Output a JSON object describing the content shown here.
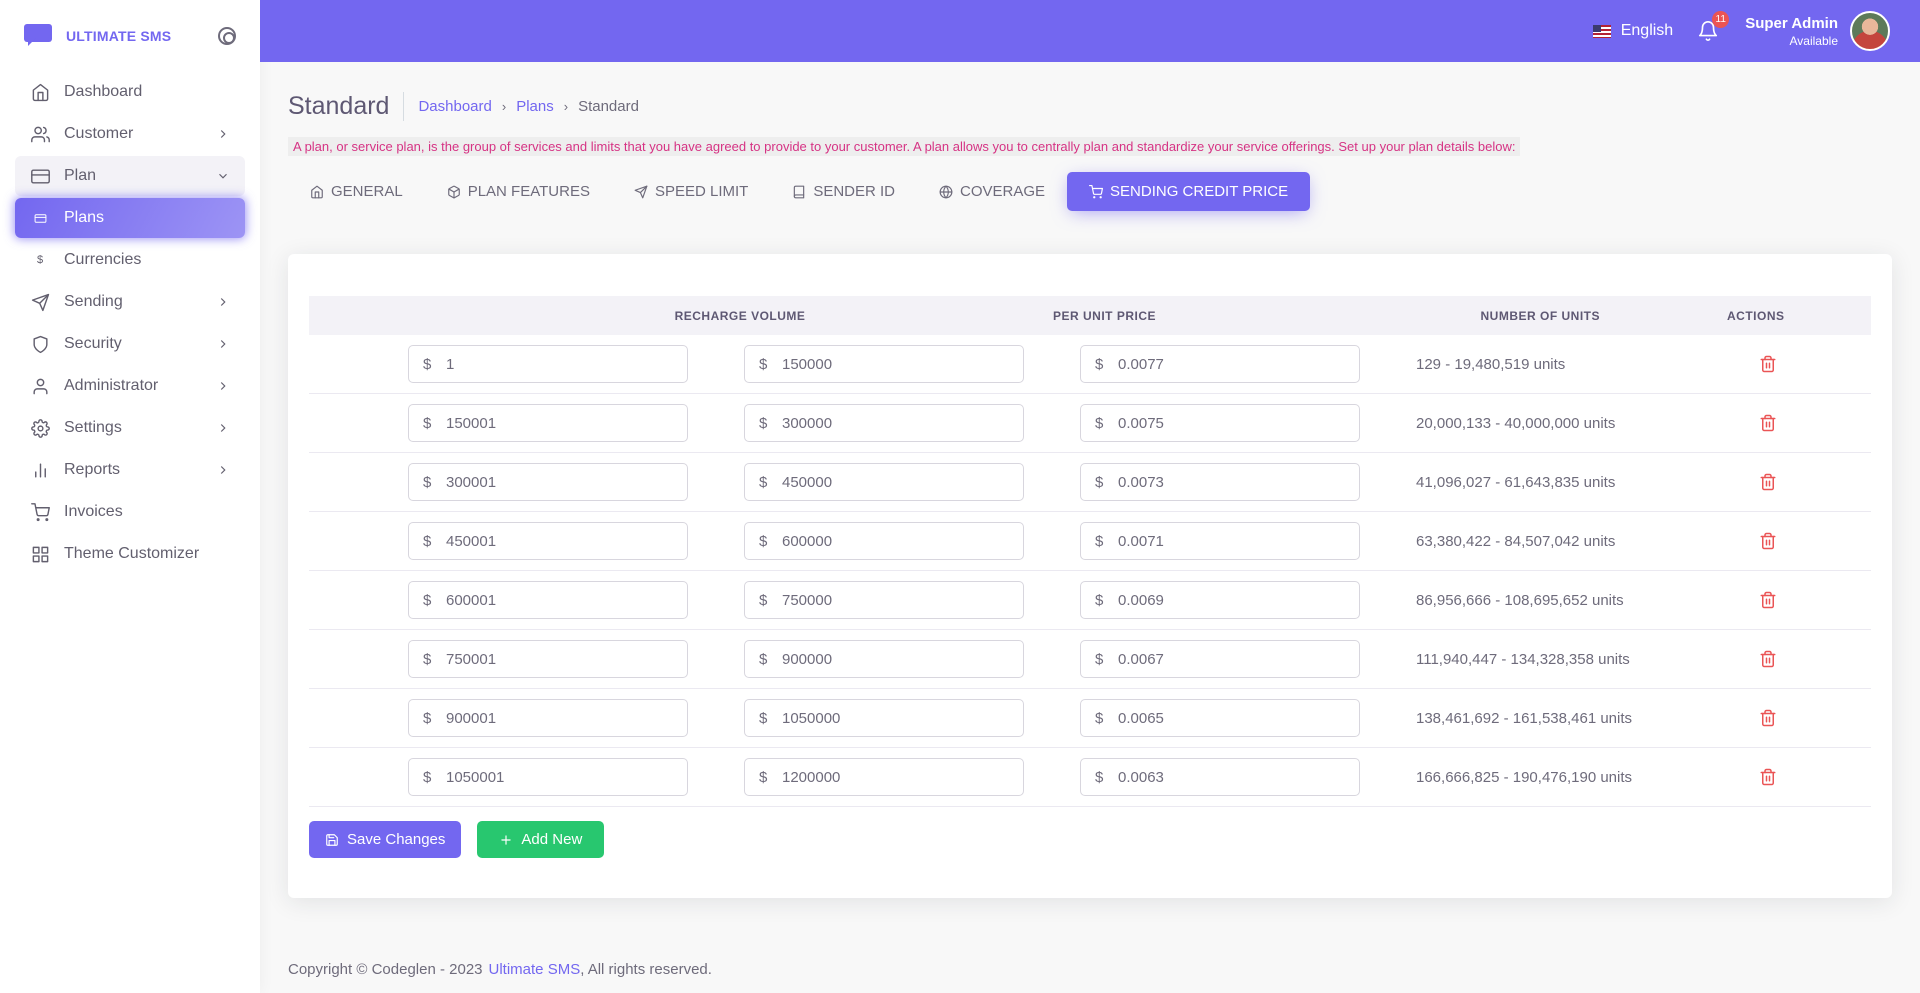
{
  "brand": {
    "name": "ULTIMATE SMS"
  },
  "sidebar": {
    "items": [
      {
        "label": "Dashboard",
        "icon": "home-icon",
        "has_children": false
      },
      {
        "label": "Customer",
        "icon": "users-icon",
        "has_children": true
      },
      {
        "label": "Plan",
        "icon": "credit-card-icon",
        "has_children": true,
        "open": true
      },
      {
        "label": "Plans",
        "icon": "card-mini-icon",
        "sub": true,
        "active": true
      },
      {
        "label": "Currencies",
        "icon": "dollar-icon",
        "sub": true
      },
      {
        "label": "Sending",
        "icon": "send-icon",
        "has_children": true
      },
      {
        "label": "Security",
        "icon": "shield-icon",
        "has_children": true
      },
      {
        "label": "Administrator",
        "icon": "user-icon",
        "has_children": true
      },
      {
        "label": "Settings",
        "icon": "gear-icon",
        "has_children": true
      },
      {
        "label": "Reports",
        "icon": "bar-chart-icon",
        "has_children": true
      },
      {
        "label": "Invoices",
        "icon": "cart-icon",
        "has_children": false
      },
      {
        "label": "Theme Customizer",
        "icon": "grid-icon",
        "has_children": false
      }
    ]
  },
  "header": {
    "language": "English",
    "notification_count": "11",
    "user_name": "Super Admin",
    "user_status": "Available"
  },
  "page": {
    "title": "Standard",
    "breadcrumb": {
      "home": "Dashboard",
      "parent": "Plans",
      "current": "Standard"
    },
    "notice": "A plan, or service plan, is the group of services and limits that you have agreed to provide to your customer. A plan allows you to centrally plan and standardize your service offerings. Set up your plan details below:"
  },
  "tabs": [
    {
      "label": "General",
      "icon": "home-icon"
    },
    {
      "label": "Plan Features",
      "icon": "box-icon"
    },
    {
      "label": "Speed Limit",
      "icon": "send-icon"
    },
    {
      "label": "Sender ID",
      "icon": "book-icon"
    },
    {
      "label": "Coverage",
      "icon": "globe-icon"
    },
    {
      "label": "Sending Credit Price",
      "icon": "cart-icon",
      "active": true
    }
  ],
  "table": {
    "headers": {
      "recharge_volume": "Recharge Volume",
      "per_unit_price": "Per Unit Price",
      "number_of_units": "Number of Units",
      "actions": "Actions"
    },
    "currency_symbol": "$",
    "rows": [
      {
        "from": "1",
        "to": "150000",
        "price": "0.0077",
        "units": "129 - 19,480,519 units"
      },
      {
        "from": "150001",
        "to": "300000",
        "price": "0.0075",
        "units": "20,000,133 - 40,000,000 units"
      },
      {
        "from": "300001",
        "to": "450000",
        "price": "0.0073",
        "units": "41,096,027 - 61,643,835 units"
      },
      {
        "from": "450001",
        "to": "600000",
        "price": "0.0071",
        "units": "63,380,422 - 84,507,042 units"
      },
      {
        "from": "600001",
        "to": "750000",
        "price": "0.0069",
        "units": "86,956,666 - 108,695,652 units"
      },
      {
        "from": "750001",
        "to": "900000",
        "price": "0.0067",
        "units": "111,940,447 - 134,328,358 units"
      },
      {
        "from": "900001",
        "to": "1050000",
        "price": "0.0065",
        "units": "138,461,692 - 161,538,461 units"
      },
      {
        "from": "1050001",
        "to": "1200000",
        "price": "0.0063",
        "units": "166,666,825 - 190,476,190 units"
      }
    ]
  },
  "buttons": {
    "save": "Save Changes",
    "add": "Add New"
  },
  "footer": {
    "copyright": "Copyright © Codeglen - 2023",
    "link": "Ultimate SMS",
    "suffix": ", All rights reserved."
  },
  "colors": {
    "primary": "#7367f0",
    "success": "#28c76f",
    "danger": "#ea5455",
    "notice_text": "#d63384"
  }
}
